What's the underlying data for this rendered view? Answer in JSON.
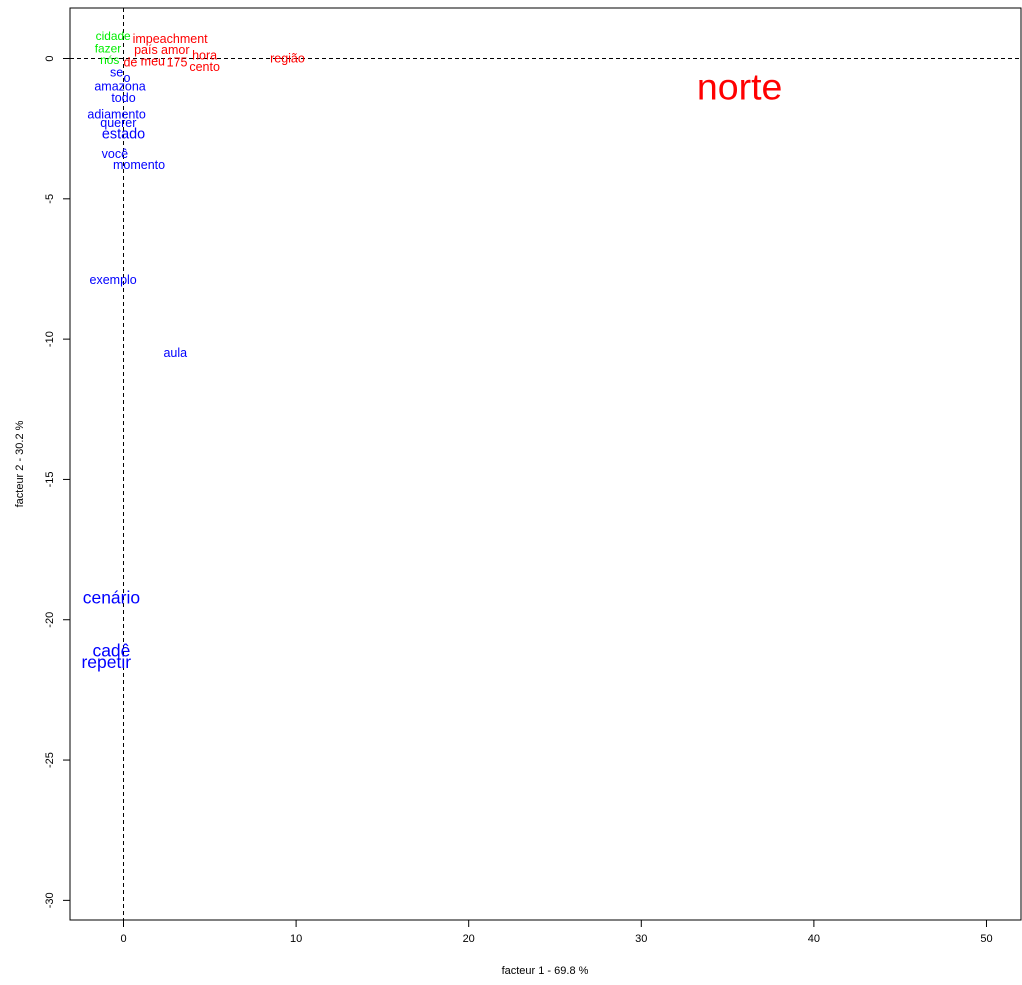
{
  "chart_data": {
    "type": "scatter",
    "xlabel": "facteur  1  - 69.8 %",
    "ylabel": "facteur  2  - 30.2 %",
    "xlim": [
      -3.1,
      52
    ],
    "ylim": [
      -30.7,
      1.8
    ],
    "x_ticks": [
      0,
      10,
      20,
      30,
      40,
      50
    ],
    "y_ticks": [
      0,
      -5,
      -10,
      -15,
      -20,
      -25,
      -30
    ],
    "reference_lines": {
      "x": 0,
      "y": 0,
      "style": "dashed"
    },
    "grid": false,
    "legend": "none",
    "colors": {
      "green": "#00ee00",
      "red": "#ff0000",
      "blue": "#0000ff"
    },
    "points": [
      {
        "label": "norte",
        "x": 35.7,
        "y": -1.0,
        "color": "red",
        "size": 3.0
      },
      {
        "label": "região",
        "x": 9.5,
        "y": 0.0,
        "color": "red",
        "size": 1.0
      },
      {
        "label": "impeachment",
        "x": 2.7,
        "y": 0.7,
        "color": "red",
        "size": 1.0
      },
      {
        "label": "país",
        "x": 1.3,
        "y": 0.3,
        "color": "red",
        "size": 1.0
      },
      {
        "label": "amor",
        "x": 3.0,
        "y": 0.3,
        "color": "red",
        "size": 1.0
      },
      {
        "label": "hora",
        "x": 4.7,
        "y": 0.1,
        "color": "red",
        "size": 1.0
      },
      {
        "label": "meu",
        "x": 1.7,
        "y": -0.1,
        "color": "red",
        "size": 1.0
      },
      {
        "label": "de",
        "x": 0.4,
        "y": -0.15,
        "color": "red",
        "size": 1.0
      },
      {
        "label": "175",
        "x": 3.1,
        "y": -0.15,
        "color": "red",
        "size": 1.0
      },
      {
        "label": "cento",
        "x": 4.7,
        "y": -0.3,
        "color": "red",
        "size": 1.0
      },
      {
        "label": "cidade",
        "x": -0.6,
        "y": 0.8,
        "color": "green",
        "size": 0.95
      },
      {
        "label": "fazer",
        "x": -0.9,
        "y": 0.35,
        "color": "green",
        "size": 0.95
      },
      {
        "label": "nós",
        "x": -0.8,
        "y": -0.05,
        "color": "green",
        "size": 0.95
      },
      {
        "label": "se",
        "x": -0.4,
        "y": -0.5,
        "color": "blue",
        "size": 1.0
      },
      {
        "label": "o",
        "x": 0.2,
        "y": -0.7,
        "color": "blue",
        "size": 1.0
      },
      {
        "label": "amazona",
        "x": -0.2,
        "y": -1.0,
        "color": "blue",
        "size": 1.0
      },
      {
        "label": "todo",
        "x": 0.0,
        "y": -1.4,
        "color": "blue",
        "size": 1.0
      },
      {
        "label": "adiamento",
        "x": -0.4,
        "y": -2.0,
        "color": "blue",
        "size": 1.0
      },
      {
        "label": "querer",
        "x": -0.3,
        "y": -2.3,
        "color": "blue",
        "size": 1.0
      },
      {
        "label": "estado",
        "x": 0.0,
        "y": -2.7,
        "color": "blue",
        "size": 1.15
      },
      {
        "label": "você",
        "x": -0.5,
        "y": -3.4,
        "color": "blue",
        "size": 1.0
      },
      {
        "label": "momento",
        "x": 0.9,
        "y": -3.8,
        "color": "blue",
        "size": 1.0
      },
      {
        "label": "exemplo",
        "x": -0.6,
        "y": -7.9,
        "color": "blue",
        "size": 1.0
      },
      {
        "label": "aula",
        "x": 3.0,
        "y": -10.5,
        "color": "blue",
        "size": 1.0
      },
      {
        "label": "cenário",
        "x": -0.7,
        "y": -19.2,
        "color": "blue",
        "size": 1.4
      },
      {
        "label": "cadê",
        "x": -0.7,
        "y": -21.1,
        "color": "blue",
        "size": 1.4
      },
      {
        "label": "repetir",
        "x": -1.0,
        "y": -21.5,
        "color": "blue",
        "size": 1.4
      }
    ]
  }
}
